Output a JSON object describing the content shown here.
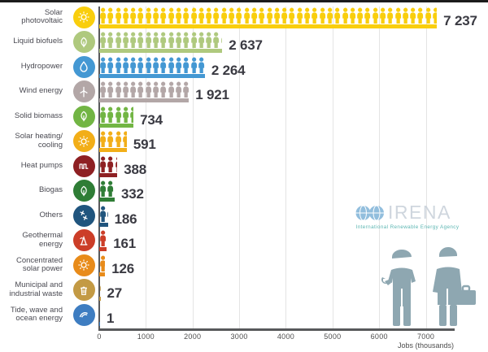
{
  "chart_data": {
    "type": "pictogram-bar",
    "title": "",
    "xlabel": "Jobs (thousands)",
    "x_ticks": [
      0,
      1000,
      2000,
      3000,
      4000,
      5000,
      6000,
      7000
    ],
    "x_tick_labels": [
      "0",
      "1000",
      "2000",
      "3000",
      "4000",
      "5000",
      "6000",
      "7000"
    ],
    "xlim": [
      0,
      7600
    ],
    "grid": true,
    "categories": [
      {
        "label": "Solar\nphotovoltaic",
        "value": 7237,
        "value_label": "7 237",
        "color": "#F9CE0D",
        "icon": "sun-icon"
      },
      {
        "label": "Liquid biofuels",
        "value": 2637,
        "value_label": "2 637",
        "color": "#AFC97E",
        "icon": "leaf-icon"
      },
      {
        "label": "Hydropower",
        "value": 2264,
        "value_label": "2 264",
        "color": "#4498D3",
        "icon": "water-drop-icon"
      },
      {
        "label": "Wind energy",
        "value": 1921,
        "value_label": "1 921",
        "color": "#B3A7A7",
        "icon": "wind-turbine-icon"
      },
      {
        "label": "Solid biomass",
        "value": 734,
        "value_label": "734",
        "color": "#72B544",
        "icon": "leaf-icon"
      },
      {
        "label": "Solar heating/\ncooling",
        "value": 591,
        "value_label": "591",
        "color": "#F2AE18",
        "icon": "sun-icon"
      },
      {
        "label": "Heat pumps",
        "value": 388,
        "value_label": "388",
        "color": "#8E2023",
        "icon": "coil-icon"
      },
      {
        "label": "Biogas",
        "value": 332,
        "value_label": "332",
        "color": "#2F7D36",
        "icon": "leaf-icon"
      },
      {
        "label": "Others",
        "value": 186,
        "value_label": "186",
        "color": "#20557E",
        "icon": "sparks-icon"
      },
      {
        "label": "Geothermal\nenergy",
        "value": 161,
        "value_label": "161",
        "color": "#CC3E28",
        "icon": "geothermal-icon"
      },
      {
        "label": "Concentrated\nsolar power",
        "value": 126,
        "value_label": "126",
        "color": "#E88B1A",
        "icon": "sun-icon"
      },
      {
        "label": "Municipal and\nindustrial waste",
        "value": 27,
        "value_label": "27",
        "color": "#C39A44",
        "icon": "trash-icon"
      },
      {
        "label": "Tide, wave and\nocean energy",
        "value": 1,
        "value_label": "1",
        "color": "#3E7DC1",
        "icon": "wave-icon"
      }
    ]
  },
  "watermark": {
    "brand": "IRENA",
    "tagline": "International Renewable Energy Agency",
    "globes_icon": "irena-globes-icon"
  },
  "illustration": {
    "icon": "workers-icon"
  },
  "colors": {
    "axis": "#58595b",
    "grid": "#e4e4e4",
    "value_text": "#3a3a42",
    "label_text": "#4a4a52",
    "logo_blue": "#7FB3D8",
    "logo_gray": "#c7d0d9",
    "logo_teal": "#3fa9a5",
    "workers": "#8EA7B1"
  }
}
